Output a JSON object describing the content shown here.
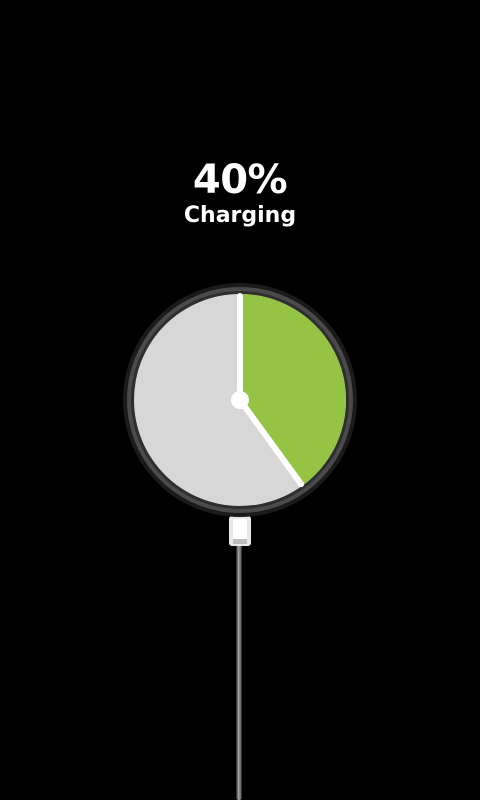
{
  "battery": {
    "percent_label": "40%",
    "level": 0.4,
    "state_label": "Charging"
  },
  "colors": {
    "background": "#000000",
    "text": "#ffffff",
    "charged": "#95c344",
    "empty": "#d7d7d7",
    "ring": "#3c3c3c",
    "hand": "#ffffff",
    "cable": "#7a7a7a"
  },
  "icons": {
    "gauge": "battery-pie-gauge",
    "plug": "charger-plug-icon"
  }
}
